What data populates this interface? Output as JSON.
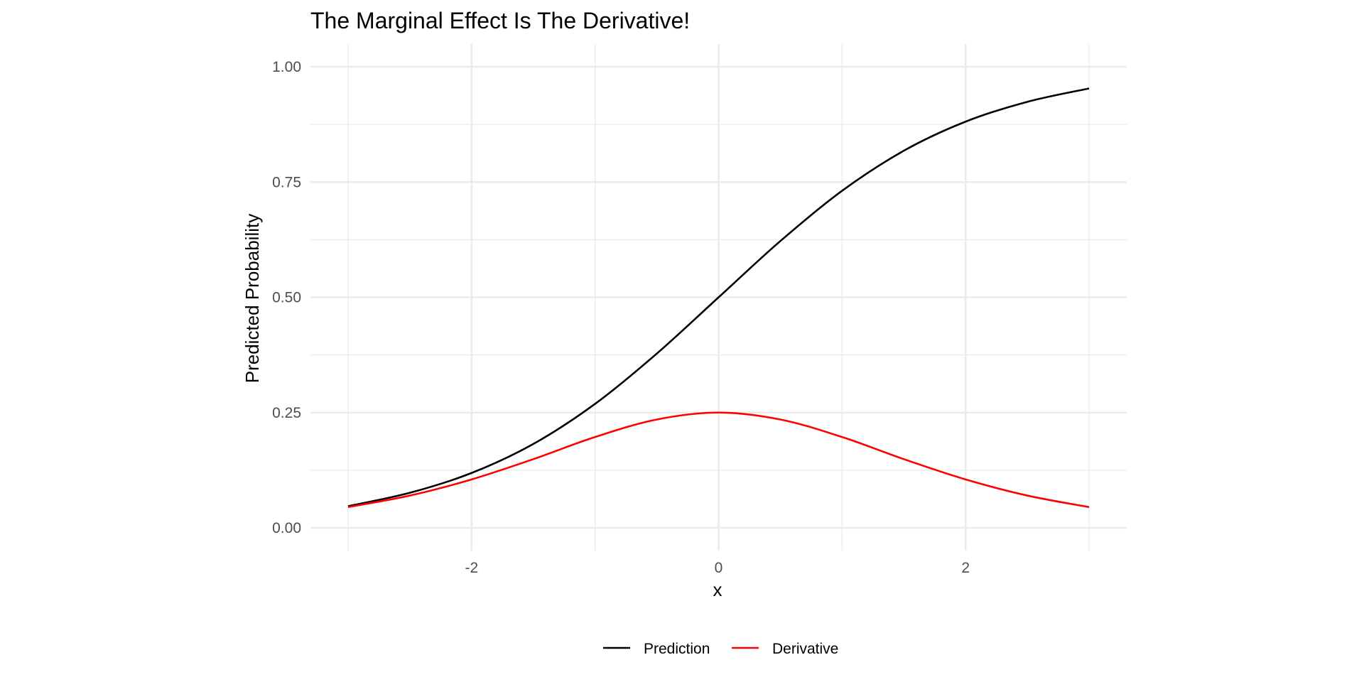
{
  "chart_data": {
    "type": "line",
    "title": "The Marginal Effect Is The Derivative!",
    "xlabel": "x",
    "ylabel": "Predicted Probability",
    "xlim": [
      -3,
      3
    ],
    "ylim": [
      0,
      1
    ],
    "x_ticks": [
      -2,
      0,
      2
    ],
    "x_tick_labels": [
      "-2",
      "0",
      "2"
    ],
    "y_ticks": [
      0,
      0.25,
      0.5,
      0.75,
      1
    ],
    "y_tick_labels": [
      "0.00",
      "0.25",
      "0.50",
      "0.75",
      "1.00"
    ],
    "grid": true,
    "legend_position": "bottom",
    "x": [
      -3,
      -2.5,
      -2,
      -1.5,
      -1,
      -0.5,
      0,
      0.5,
      1,
      1.5,
      2,
      2.5,
      3
    ],
    "series": [
      {
        "name": "Prediction",
        "color": "#000000",
        "values": [
          0.047,
          0.076,
          0.119,
          0.182,
          0.269,
          0.378,
          0.5,
          0.622,
          0.731,
          0.818,
          0.881,
          0.924,
          0.953
        ]
      },
      {
        "name": "Derivative",
        "color": "#ff0000",
        "values": [
          0.045,
          0.07,
          0.105,
          0.149,
          0.197,
          0.235,
          0.25,
          0.235,
          0.197,
          0.149,
          0.105,
          0.07,
          0.045
        ]
      }
    ]
  }
}
